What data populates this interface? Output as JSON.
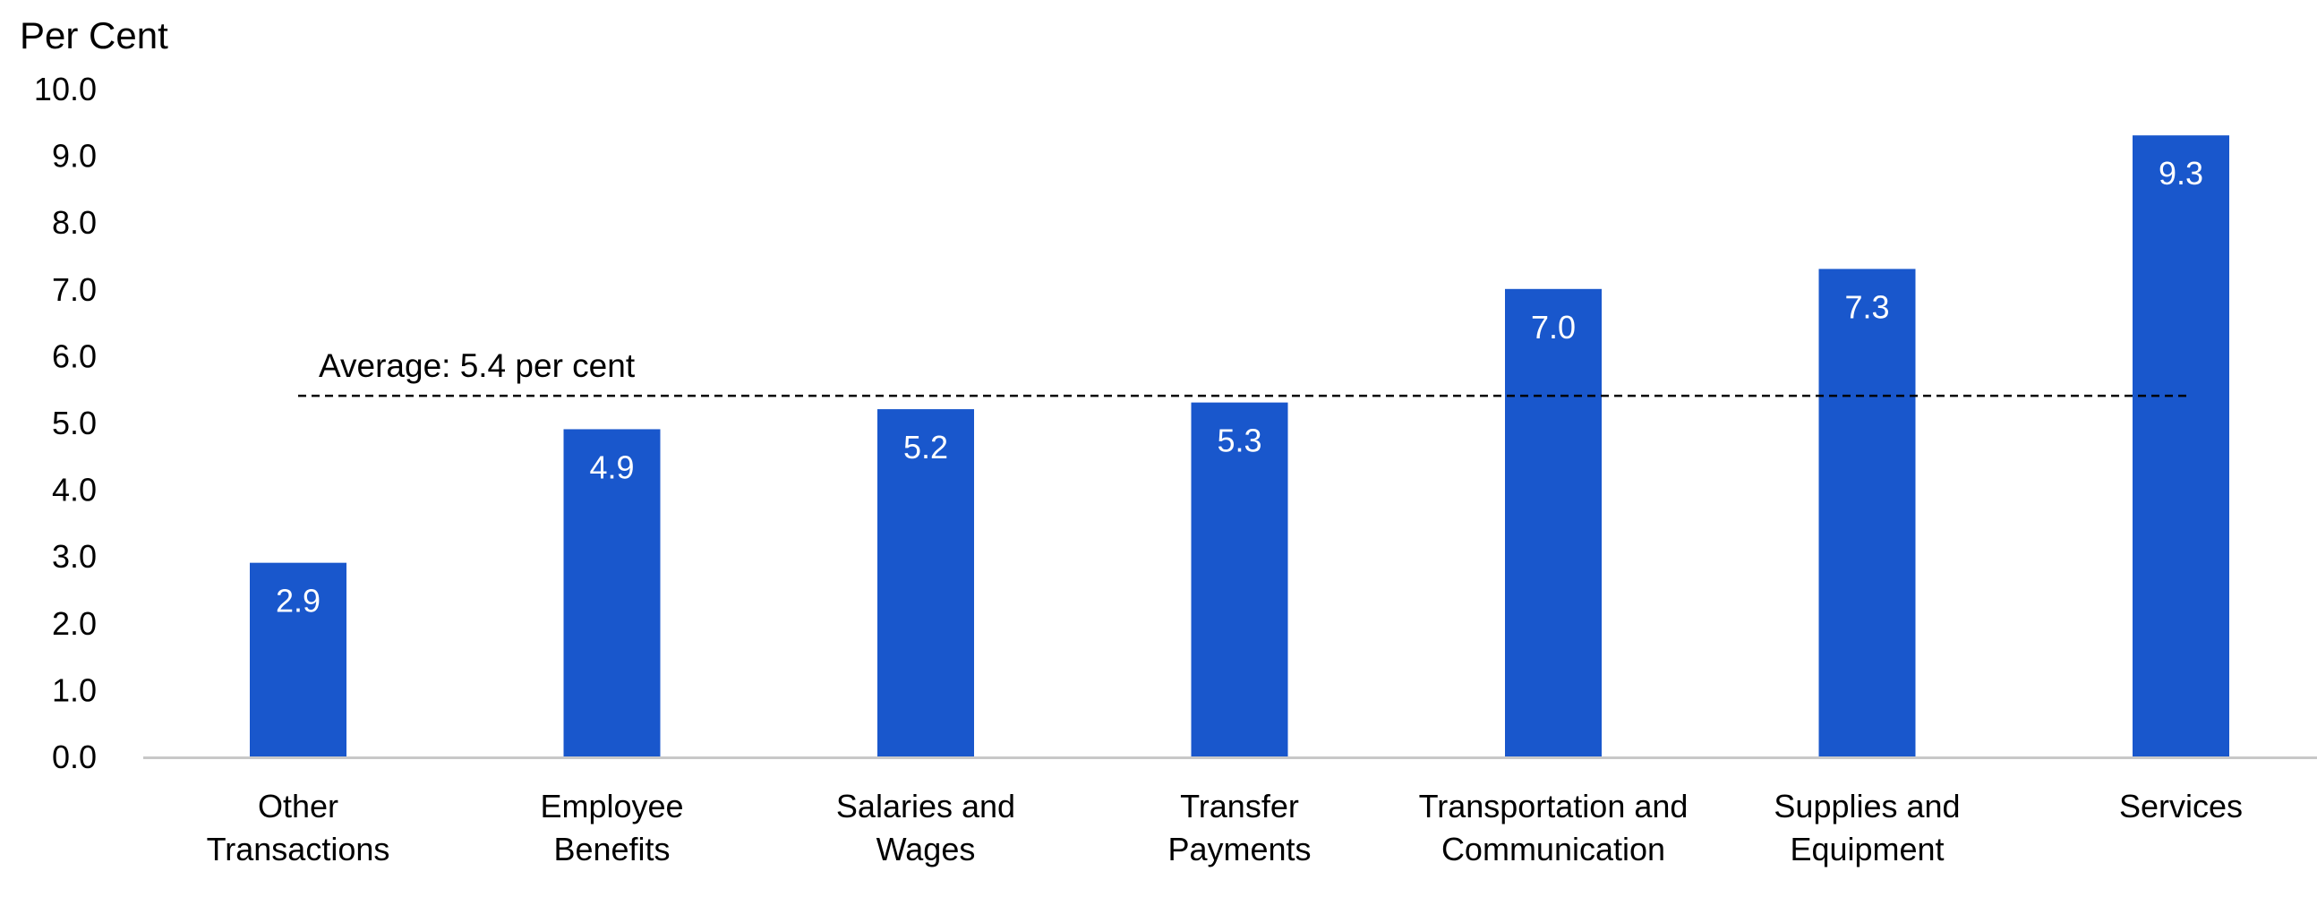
{
  "chart_data": {
    "type": "bar",
    "ylabel": "Per Cent",
    "xlabel": "",
    "ylim": [
      0,
      10
    ],
    "yticks": [
      "0.0",
      "1.0",
      "2.0",
      "3.0",
      "4.0",
      "5.0",
      "6.0",
      "7.0",
      "8.0",
      "9.0",
      "10.0"
    ],
    "categories": [
      [
        "Other",
        "Transactions"
      ],
      [
        "Employee",
        "Benefits"
      ],
      [
        "Salaries and",
        "Wages"
      ],
      [
        "Transfer",
        "Payments"
      ],
      [
        "Transportation and",
        "Communication"
      ],
      [
        "Supplies and",
        "Equipment"
      ],
      [
        "Services"
      ]
    ],
    "values": [
      2.9,
      4.9,
      5.2,
      5.3,
      7.0,
      7.3,
      9.3
    ],
    "data_labels": [
      "2.9",
      "4.9",
      "5.2",
      "5.3",
      "7.0",
      "7.3",
      "9.3"
    ],
    "average": {
      "value": 5.4,
      "label": "Average: 5.4 per cent"
    },
    "grid": false,
    "legend": "none",
    "colors": {
      "bar": "#1957CC",
      "axis": "#c8c8c8",
      "average_line": "#000000",
      "data_label": "#ffffff"
    }
  }
}
